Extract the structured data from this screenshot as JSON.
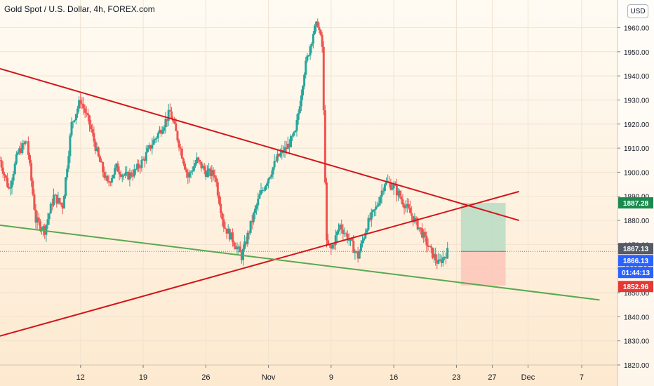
{
  "header": {
    "title": "Gold Spot / U.S. Dollar, 4h, FOREX.com",
    "currency_button": "USD"
  },
  "colors": {
    "bg_top": "#fffbf3",
    "bg_bottom": "#fde9cf",
    "candle_up": "#26a69a",
    "candle_down": "#ef5350",
    "trend_red": "#d1161b",
    "trend_green": "#5aa84f",
    "target_zone": "#b9dcc4",
    "stop_zone": "#fdc6b9",
    "badge_green": "#1b8a4e",
    "badge_gray": "#545a66",
    "badge_blue": "#2962ff",
    "badge_red": "#e53935"
  },
  "chart_data": {
    "type": "candlestick",
    "symbol": "Gold Spot / U.S. Dollar",
    "interval": "4h",
    "source": "FOREX.com",
    "ylim": [
      1820,
      1968
    ],
    "y_ticks": [
      1820,
      1830,
      1840,
      1850,
      1860,
      1870,
      1880,
      1890,
      1900,
      1910,
      1920,
      1930,
      1940,
      1950,
      1960
    ],
    "y_tick_labels": [
      "1820.00",
      "1830.00",
      "1840.00",
      "1850.00",
      "1860.00",
      "1870.00",
      "1880.00",
      "1890.00",
      "1900.00",
      "1910.00",
      "1920.00",
      "1930.00",
      "1940.00",
      "1950.00",
      "1960.00"
    ],
    "x_ticks": [
      {
        "label": "12",
        "day": 12
      },
      {
        "label": "19",
        "day": 19
      },
      {
        "label": "26",
        "day": 26
      },
      {
        "label": "Nov",
        "day": 33
      },
      {
        "label": "9",
        "day": 40
      },
      {
        "label": "16",
        "day": 47
      },
      {
        "label": "23",
        "day": 54
      },
      {
        "label": "27",
        "day": 58
      },
      {
        "label": "Dec",
        "day": 62
      },
      {
        "label": "7",
        "day": 68
      }
    ],
    "xlim": [
      3,
      72
    ],
    "price_path": [
      [
        3,
        1905
      ],
      [
        4,
        1893
      ],
      [
        5,
        1908
      ],
      [
        6,
        1913
      ],
      [
        7,
        1880
      ],
      [
        8,
        1876
      ],
      [
        9,
        1890
      ],
      [
        10,
        1886
      ],
      [
        11,
        1920
      ],
      [
        12,
        1930
      ],
      [
        13,
        1920
      ],
      [
        14,
        1906
      ],
      [
        15,
        1895
      ],
      [
        16,
        1902
      ],
      [
        17,
        1898
      ],
      [
        18,
        1900
      ],
      [
        19,
        1905
      ],
      [
        20,
        1912
      ],
      [
        21,
        1918
      ],
      [
        22,
        1925
      ],
      [
        23,
        1912
      ],
      [
        24,
        1898
      ],
      [
        25,
        1905
      ],
      [
        26,
        1900
      ],
      [
        27,
        1899
      ],
      [
        28,
        1878
      ],
      [
        29,
        1872
      ],
      [
        30,
        1865
      ],
      [
        31,
        1878
      ],
      [
        32,
        1890
      ],
      [
        33,
        1898
      ],
      [
        34,
        1906
      ],
      [
        35,
        1910
      ],
      [
        36,
        1916
      ],
      [
        37,
        1942
      ],
      [
        37.5,
        1950
      ],
      [
        38,
        1958
      ],
      [
        38.5,
        1962
      ],
      [
        39,
        1952
      ],
      [
        39.5,
        1870
      ],
      [
        40,
        1868
      ],
      [
        41,
        1878
      ],
      [
        42,
        1872
      ],
      [
        43,
        1865
      ],
      [
        44,
        1878
      ],
      [
        45,
        1885
      ],
      [
        46,
        1896
      ],
      [
        47,
        1894
      ],
      [
        48,
        1888
      ],
      [
        49,
        1882
      ],
      [
        50,
        1876
      ],
      [
        51,
        1868
      ],
      [
        52,
        1862
      ],
      [
        53,
        1867
      ]
    ],
    "trendlines": [
      {
        "color": "red",
        "from": [
          3,
          1943
        ],
        "to": [
          61,
          1880
        ]
      },
      {
        "color": "red",
        "from": [
          3,
          1832
        ],
        "to": [
          61,
          1892
        ]
      },
      {
        "color": "green",
        "from": [
          3,
          1878
        ],
        "to": [
          70,
          1847
        ]
      }
    ],
    "position_tool": {
      "entry_price": 1867.13,
      "target_price": 1887.28,
      "stop_price": 1852.96,
      "x_start": 54.5,
      "x_end": 59.5
    },
    "current_price": 1867.13,
    "bid_price": 1866.13,
    "countdown": "01:44:13"
  },
  "price_badges": {
    "target": "1887.28",
    "last": "1867.13",
    "bid": "1866.13",
    "countdown": "01:44:13",
    "stop": "1852.96"
  }
}
